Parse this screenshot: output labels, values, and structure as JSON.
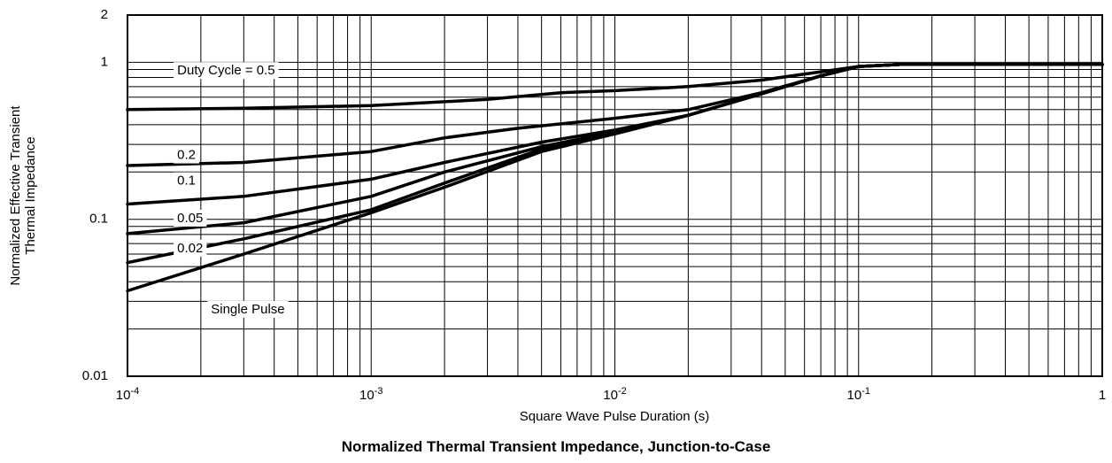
{
  "chart_data": {
    "type": "line",
    "title": "Normalized Thermal Transient Impedance, Junction-to-Case",
    "xlabel": "Square Wave Pulse Duration (s)",
    "ylabel_lines": [
      "Normalized Effective Transient",
      "Thermal Impedance"
    ],
    "x_scale": "log",
    "y_scale": "log",
    "xlim": [
      0.0001,
      1
    ],
    "ylim": [
      0.01,
      2
    ],
    "grid": true,
    "x_ticks": [
      {
        "value": 0.0001,
        "base": "10",
        "exp": "-4"
      },
      {
        "value": 0.001,
        "base": "10",
        "exp": "-3"
      },
      {
        "value": 0.01,
        "base": "10",
        "exp": "-2"
      },
      {
        "value": 0.1,
        "base": "10",
        "exp": "-1"
      },
      {
        "value": 1,
        "base": "1",
        "exp": ""
      }
    ],
    "y_ticks": [
      {
        "value": 0.01,
        "label": "0.01"
      },
      {
        "value": 0.1,
        "label": "0.1"
      },
      {
        "value": 1,
        "label": "1"
      },
      {
        "value": 2,
        "label": "2"
      }
    ],
    "series": [
      {
        "name": "Duty Cycle = 0.5",
        "label_x": 0.00016,
        "label_y": 0.88,
        "points": [
          [
            0.0001,
            0.5
          ],
          [
            0.0003,
            0.51
          ],
          [
            0.001,
            0.53
          ],
          [
            0.003,
            0.58
          ],
          [
            0.006,
            0.64
          ],
          [
            0.01,
            0.66
          ],
          [
            0.02,
            0.7
          ],
          [
            0.04,
            0.77
          ],
          [
            0.07,
            0.87
          ],
          [
            0.1,
            0.94
          ],
          [
            0.15,
            0.97
          ],
          [
            1,
            0.97
          ]
        ]
      },
      {
        "name": "0.2",
        "label_x": 0.00016,
        "label_y": 0.255,
        "points": [
          [
            0.0001,
            0.22
          ],
          [
            0.0003,
            0.23
          ],
          [
            0.001,
            0.27
          ],
          [
            0.002,
            0.33
          ],
          [
            0.004,
            0.38
          ],
          [
            0.01,
            0.44
          ],
          [
            0.02,
            0.5
          ],
          [
            0.04,
            0.64
          ],
          [
            0.07,
            0.82
          ],
          [
            0.1,
            0.94
          ],
          [
            0.15,
            0.97
          ],
          [
            1,
            0.97
          ]
        ]
      },
      {
        "name": "0.1",
        "label_x": 0.00016,
        "label_y": 0.175,
        "points": [
          [
            0.0001,
            0.125
          ],
          [
            0.0003,
            0.14
          ],
          [
            0.001,
            0.18
          ],
          [
            0.002,
            0.23
          ],
          [
            0.005,
            0.31
          ],
          [
            0.01,
            0.37
          ],
          [
            0.02,
            0.46
          ],
          [
            0.04,
            0.63
          ],
          [
            0.07,
            0.82
          ],
          [
            0.1,
            0.94
          ],
          [
            0.15,
            0.97
          ],
          [
            1,
            0.97
          ]
        ]
      },
      {
        "name": "0.05",
        "label_x": 0.00016,
        "label_y": 0.101,
        "points": [
          [
            0.0001,
            0.081
          ],
          [
            0.0003,
            0.095
          ],
          [
            0.001,
            0.14
          ],
          [
            0.002,
            0.2
          ],
          [
            0.005,
            0.29
          ],
          [
            0.01,
            0.36
          ],
          [
            0.02,
            0.46
          ],
          [
            0.04,
            0.63
          ],
          [
            0.07,
            0.82
          ],
          [
            0.1,
            0.94
          ],
          [
            0.15,
            0.97
          ],
          [
            1,
            0.97
          ]
        ]
      },
      {
        "name": "0.02",
        "label_x": 0.00016,
        "label_y": 0.065,
        "points": [
          [
            0.0001,
            0.053
          ],
          [
            0.0003,
            0.075
          ],
          [
            0.001,
            0.115
          ],
          [
            0.002,
            0.17
          ],
          [
            0.005,
            0.28
          ],
          [
            0.01,
            0.35
          ],
          [
            0.02,
            0.46
          ],
          [
            0.04,
            0.63
          ],
          [
            0.07,
            0.82
          ],
          [
            0.1,
            0.94
          ],
          [
            0.15,
            0.97
          ],
          [
            1,
            0.97
          ]
        ]
      },
      {
        "name": "Single Pulse",
        "label_x": 0.00022,
        "label_y": 0.0265,
        "points": [
          [
            0.0001,
            0.035
          ],
          [
            0.0003,
            0.06
          ],
          [
            0.001,
            0.11
          ],
          [
            0.002,
            0.16
          ],
          [
            0.005,
            0.27
          ],
          [
            0.01,
            0.35
          ],
          [
            0.02,
            0.46
          ],
          [
            0.04,
            0.63
          ],
          [
            0.07,
            0.82
          ],
          [
            0.1,
            0.94
          ],
          [
            0.15,
            0.97
          ],
          [
            1,
            0.97
          ]
        ]
      }
    ]
  }
}
